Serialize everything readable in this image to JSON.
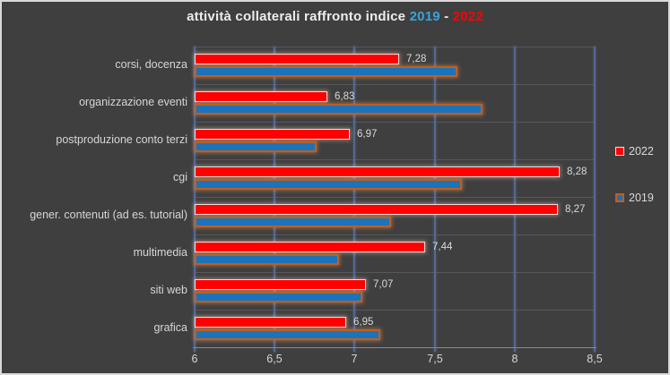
{
  "title": {
    "prefix": "attività collaterali raffronto indice ",
    "year_left": "2019",
    "separator": " - ",
    "year_right": "2022"
  },
  "colors": {
    "background": "#3F3F3F",
    "frame_border": "#D9D9D9",
    "series_2022": "#FE0000",
    "series_2022_outline": "#F2DCD6",
    "series_2019": "#1B73BC",
    "series_2019_outline": "#C05F20",
    "gridline": "#54688F",
    "title_year_left": "#38A3DC",
    "title_year_right": "#FF0000",
    "text": "#D6D6D6"
  },
  "chart_data": {
    "type": "bar",
    "orientation": "horizontal",
    "title": "attività collaterali raffronto indice 2019 - 2022",
    "categories": [
      "corsi, docenza",
      "organizzazione eventi",
      "postproduzione conto terzi",
      "cgi",
      "gener. contenuti (ad es. tutorial)",
      "multimedia",
      "siti web",
      "grafica"
    ],
    "series": [
      {
        "name": "2022",
        "values": [
          7.28,
          6.83,
          6.97,
          8.28,
          8.27,
          7.44,
          7.07,
          6.95
        ],
        "labels": [
          "7,28",
          "6,83",
          "6,97",
          "8,28",
          "8,27",
          "7,44",
          "7,07",
          "6,95"
        ]
      },
      {
        "name": "2019",
        "values": [
          7.64,
          7.8,
          6.76,
          7.67,
          7.23,
          6.9,
          7.05,
          7.16
        ],
        "labels": null
      }
    ],
    "xlim": [
      6,
      8.5
    ],
    "x_ticks": [
      6,
      6.5,
      7,
      7.5,
      8,
      8.5
    ],
    "x_tick_labels": [
      "6",
      "6,5",
      "7",
      "7,5",
      "8",
      "8,5"
    ],
    "grid": "vertical",
    "legend_position": "right",
    "legend_entries": [
      "2022",
      "2019"
    ]
  }
}
